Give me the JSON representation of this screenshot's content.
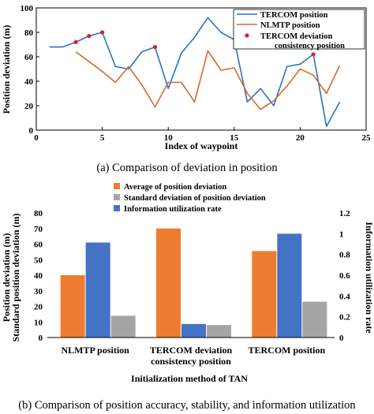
{
  "chart_data": [
    {
      "type": "line",
      "caption": "(a) Comparison of deviation in position",
      "xlabel": "Index of waypoint",
      "ylabel": "Position deviation (m)",
      "xlim": [
        0,
        25
      ],
      "ylim": [
        0,
        100
      ],
      "xticks": [
        0,
        5,
        10,
        15,
        20,
        25
      ],
      "yticks": [
        0,
        20,
        40,
        60,
        80,
        100
      ],
      "grid": false,
      "legend_position": "top-right",
      "series": [
        {
          "name": "TERCOM  position",
          "color": "#2a72c6",
          "style": "line",
          "x": [
            1,
            2,
            3,
            4,
            5,
            6,
            7,
            8,
            9,
            10,
            11,
            12,
            13,
            14,
            15,
            16,
            17,
            18,
            19,
            20,
            21,
            22,
            23
          ],
          "y": [
            68,
            68,
            72,
            77,
            80,
            52,
            50,
            64,
            68,
            34,
            63,
            76,
            92,
            80,
            74,
            23,
            34,
            20,
            52,
            54,
            62,
            3,
            23
          ]
        },
        {
          "name": "NLMTP  position",
          "color": "#d9692a",
          "style": "line",
          "x": [
            3,
            4,
            5,
            6,
            7,
            8,
            9,
            10,
            11,
            12,
            13,
            14,
            15,
            16,
            17,
            18,
            19,
            20,
            21,
            22,
            23
          ],
          "y": [
            64,
            56,
            48,
            39,
            52,
            37,
            19,
            39,
            39,
            23,
            65,
            49,
            51,
            30,
            17,
            24,
            36,
            50,
            45,
            30,
            53
          ]
        },
        {
          "name": "TERCOM  deviation consistency position",
          "color": "#e02020",
          "style": "markers",
          "x": [
            3,
            4,
            5,
            9,
            21
          ],
          "y": [
            72,
            77,
            80,
            68,
            62
          ]
        }
      ]
    },
    {
      "type": "bar",
      "caption": "(b) Comparison of position accuracy, stability, and information utilization",
      "xlabel": "Initialization method of TAN",
      "ylabel_left": [
        "Position deviation (m)",
        "Standard position deviation (m)"
      ],
      "ylabel_right": "Information utilization rate",
      "ylim_left": [
        0,
        80
      ],
      "ylim_right": [
        0,
        1.2
      ],
      "yticks_left": [
        0,
        10,
        20,
        30,
        40,
        50,
        60,
        70,
        80
      ],
      "yticks_right": [
        "0",
        "0.2",
        "0.4",
        "0.6",
        "0.8",
        "1",
        "1.2"
      ],
      "grid": false,
      "legend_position": "top",
      "categories": [
        "NLMTP position",
        "TERCOM deviation consistency position",
        "TERCOM position"
      ],
      "category_lines": [
        [
          "NLMTP position"
        ],
        [
          "TERCOM deviation",
          "consistency position"
        ],
        [
          "TERCOM position"
        ]
      ],
      "series": [
        {
          "name": "Average of position deviation",
          "color": "#ee7d31",
          "axis": "left",
          "values": [
            40,
            70,
            55.5
          ]
        },
        {
          "name": "Standard deviation of position deviation",
          "color": "#a5a5a5",
          "axis": "left",
          "values": [
            14,
            8,
            23
          ]
        },
        {
          "name": "Information utilization rate",
          "color": "#4472c4",
          "axis": "right",
          "values": [
            0.915,
            0.13,
            1.0
          ]
        }
      ]
    }
  ]
}
